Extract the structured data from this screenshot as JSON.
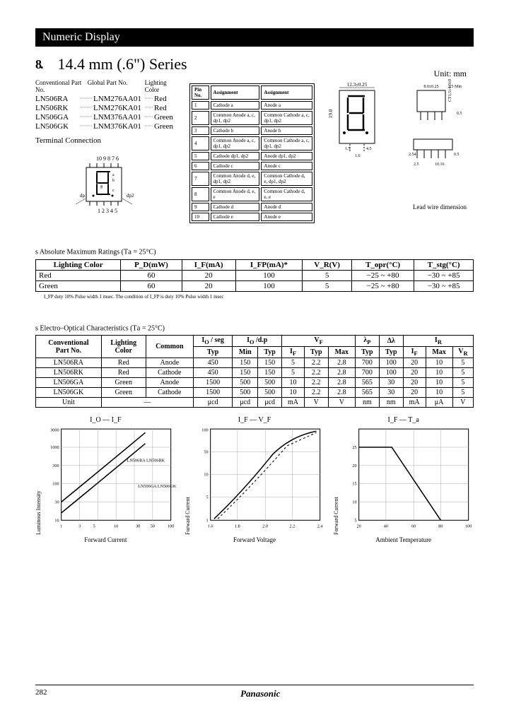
{
  "header": "Numeric Display",
  "title": "14.4 mm (.6\") Series",
  "unit": "Unit: mm",
  "parts_hdr": [
    "Conventional Part No.",
    "Global Part No.",
    "Lighting Color"
  ],
  "parts": [
    {
      "conv": "LN506RA",
      "glob": "LNM276AA01",
      "color": "Red"
    },
    {
      "conv": "LN506RK",
      "glob": "LNM276KA01",
      "color": "Red"
    },
    {
      "conv": "LN506GA",
      "glob": "LNM376AA01",
      "color": "Green"
    },
    {
      "conv": "LN506GK",
      "glob": "LNM376KA01",
      "color": "Green"
    }
  ],
  "term_title": "Terminal Connection",
  "pins_top": "10 9 8 7 6",
  "pins_bot": "1 2 3 4 5",
  "dp1": "dp1",
  "dp2": "dp2",
  "assign_hdr": [
    "Pin No.",
    "Assignment",
    "Assignment"
  ],
  "assign": [
    [
      "1",
      "Cathode a",
      "Anode a"
    ],
    [
      "2",
      "Common Anode a, c, dp1, dp2",
      "Common Cathode a, c, dp1, dp2"
    ],
    [
      "3",
      "Cathode b",
      "Anode b"
    ],
    [
      "4",
      "Common Anode a, c, dp1, dp2",
      "Common Cathode a, c, dp1, dp2"
    ],
    [
      "5",
      "Cathode dp1, dp2",
      "Anode dp1, dp2"
    ],
    [
      "6",
      "Cathode c",
      "Anode c"
    ],
    [
      "7",
      "Common Anode d, e, dp1, dp2",
      "Common Cathode d, e, dp1, dp2"
    ],
    [
      "8",
      "Common Anode d, e, e",
      "Common Cathode d, e, e"
    ],
    [
      "9",
      "Cathode d",
      "Anode d"
    ],
    [
      "10",
      "Cathode e",
      "Anode e"
    ]
  ],
  "dims": {
    "w": "12.3±0.25",
    "h": "19.0",
    "gap1": "1.5",
    "gap2": "1.0",
    "gap3": "4.5",
    "gap4": "1.6",
    "pitch": "2.54",
    "lead": "2.5",
    "span": "10.16",
    "d": "0.5",
    "pkg": "8.0±0.25",
    "pkgh": "3.5 Min",
    "tot": "CT1.5±4.0±0.8",
    "thk": "0.5"
  },
  "lead_lbl": "Lead wire dimension",
  "abs_title": "s  Absolute Maximum Ratings (T",
  "abs_sub": "a",
  " abs_eq": " = 25°C)",
  "abs_hdr": [
    "Lighting Color",
    "P_D(mW)",
    "I_F(mA)",
    "I_FP(mA)*",
    "V_R(V)",
    "T_opr(°C)",
    "T_stg(°C)"
  ],
  "abs_rows": [
    [
      "Red",
      "60",
      "20",
      "100",
      "5",
      "−25 ~ +80",
      "−30 ~ +85"
    ],
    [
      "Green",
      "60",
      "20",
      "100",
      "5",
      "−25 ~ +80",
      "−30 ~ +85"
    ]
  ],
  "abs_note": "I_FP        duty 10% Pulse width 1 msec. The condition of I_FP is duty 10% Pulse width 1 msec",
  "eo_title": "s  Electro–Optical Characteristics (T",
  "eo_sub": "a",
  "eo_eq": " = 25°C)",
  "eo_rows": [
    [
      "LN506RA",
      "Red",
      "Anode",
      "450",
      "150",
      "150",
      "5",
      "2.2",
      "2.8",
      "700",
      "100",
      "20",
      "10",
      "5"
    ],
    [
      "LN506RK",
      "Red",
      "Cathode",
      "450",
      "150",
      "150",
      "5",
      "2.2",
      "2.8",
      "700",
      "100",
      "20",
      "10",
      "5"
    ],
    [
      "LN506GA",
      "Green",
      "Anode",
      "1500",
      "500",
      "500",
      "10",
      "2.2",
      "2.8",
      "565",
      "30",
      "20",
      "10",
      "5"
    ],
    [
      "LN506GK",
      "Green",
      "Cathode",
      "1500",
      "500",
      "500",
      "10",
      "2.2",
      "2.8",
      "565",
      "30",
      "20",
      "10",
      "5"
    ]
  ],
  "eo_unit": [
    "Unit",
    "—",
    "μcd",
    "μcd",
    "μcd",
    "mA",
    "V",
    "V",
    "nm",
    "nm",
    "mA",
    "μA",
    "V"
  ],
  "c1": {
    "t": "I_O — I_F",
    "yl": "Luminous Intensity",
    "xl": "Forward Current",
    "xticks": [
      "1",
      "3",
      "5",
      "10",
      "30",
      "50",
      "100"
    ],
    "yticks": [
      "10",
      "30",
      "100",
      "300",
      "1000",
      "3000"
    ],
    "s1": "LN506RA\nLN506RK",
    "s2": "LN506GA\nLN506GK"
  },
  "c2": {
    "t": "I_F — V_F",
    "yl": "Forward Current",
    "xl": "Forward Voltage",
    "xticks": [
      "1.6",
      "1.8",
      "2.0",
      "2.2",
      "2.4"
    ],
    "yticks": [
      "1",
      "5",
      "10",
      "50",
      "100"
    ]
  },
  "c3": {
    "t": "I_F — T_a",
    "yl": "Forward Current",
    "xl": "Ambient Temperature",
    "xticks": [
      "20",
      "40",
      "60",
      "80",
      "100"
    ],
    "yticks": [
      "5",
      "10",
      "15",
      "20",
      "25"
    ]
  },
  "page": "282",
  "brand": "Panasonic"
}
